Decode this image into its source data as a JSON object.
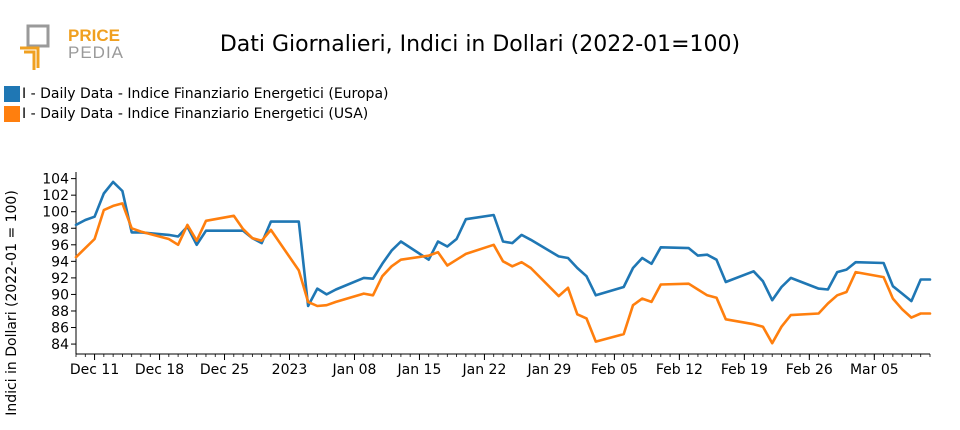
{
  "logo": {
    "line1": "PRICE",
    "line2": "PEDIA",
    "accent_color": "#f0a020",
    "gray_color": "#9a9a9a"
  },
  "title": "Dati Giornalieri, Indici in Dollari (2022-01=100)",
  "colors": {
    "europa": "#1f77b4",
    "usa": "#ff7f0e"
  },
  "chart_data": {
    "type": "line",
    "title": "Dati Giornalieri, Indici in Dollari (2022-01=100)",
    "xlabel": "",
    "ylabel": "Indici in Dollari (2022-01 = 100)",
    "ylim": [
      82.8,
      104.8
    ],
    "yticks": [
      84,
      86,
      88,
      90,
      92,
      94,
      96,
      98,
      100,
      102,
      104
    ],
    "xlim": [
      "2022-12-09",
      "2023-03-11"
    ],
    "xticks": [
      {
        "date": "2022-12-11",
        "label": "Dec 11"
      },
      {
        "date": "2022-12-18",
        "label": "Dec 18"
      },
      {
        "date": "2022-12-25",
        "label": "Dec 25"
      },
      {
        "date": "2023-01-01",
        "label": "2023"
      },
      {
        "date": "2023-01-08",
        "label": "Jan 08"
      },
      {
        "date": "2023-01-15",
        "label": "Jan 15"
      },
      {
        "date": "2023-01-22",
        "label": "Jan 22"
      },
      {
        "date": "2023-01-29",
        "label": "Jan 29"
      },
      {
        "date": "2023-02-05",
        "label": "Feb 05"
      },
      {
        "date": "2023-02-12",
        "label": "Feb 12"
      },
      {
        "date": "2023-02-19",
        "label": "Feb 19"
      },
      {
        "date": "2023-02-26",
        "label": "Feb 26"
      },
      {
        "date": "2023-03-05",
        "label": "Mar 05"
      }
    ],
    "series": [
      {
        "name": "I - Daily Data - Indice Finanziario Energetici (Europa)",
        "x": [
          "2022-12-09",
          "2022-12-10",
          "2022-12-11",
          "2022-12-12",
          "2022-12-13",
          "2022-12-14",
          "2022-12-15",
          "2022-12-16",
          "2022-12-19",
          "2022-12-20",
          "2022-12-21",
          "2022-12-22",
          "2022-12-23",
          "2022-12-26",
          "2022-12-27",
          "2022-12-28",
          "2022-12-29",
          "2022-12-30",
          "2023-01-02",
          "2023-01-03",
          "2023-01-04",
          "2023-01-05",
          "2023-01-06",
          "2023-01-09",
          "2023-01-10",
          "2023-01-11",
          "2023-01-12",
          "2023-01-13",
          "2023-01-16",
          "2023-01-17",
          "2023-01-18",
          "2023-01-19",
          "2023-01-20",
          "2023-01-23",
          "2023-01-24",
          "2023-01-25",
          "2023-01-26",
          "2023-01-27",
          "2023-01-30",
          "2023-01-31",
          "2023-02-01",
          "2023-02-02",
          "2023-02-03",
          "2023-02-06",
          "2023-02-07",
          "2023-02-08",
          "2023-02-09",
          "2023-02-10",
          "2023-02-13",
          "2023-02-14",
          "2023-02-15",
          "2023-02-16",
          "2023-02-17",
          "2023-02-20",
          "2023-02-21",
          "2023-02-22",
          "2023-02-23",
          "2023-02-24",
          "2023-02-27",
          "2023-02-28",
          "2023-03-01",
          "2023-03-02",
          "2023-03-03",
          "2023-03-06",
          "2023-03-07",
          "2023-03-08",
          "2023-03-09",
          "2023-03-10",
          "2023-03-11"
        ],
        "values": [
          98.4,
          99.0,
          99.4,
          102.2,
          103.6,
          102.5,
          97.5,
          97.5,
          97.2,
          97.0,
          98.2,
          96.0,
          97.7,
          97.7,
          97.7,
          96.8,
          96.2,
          98.8,
          98.8,
          88.6,
          90.7,
          90.0,
          90.6,
          92.0,
          91.9,
          93.7,
          95.3,
          96.4,
          94.2,
          96.4,
          95.8,
          96.7,
          99.1,
          99.6,
          96.4,
          96.2,
          97.2,
          96.6,
          94.6,
          94.4,
          93.2,
          92.2,
          89.9,
          90.9,
          93.2,
          94.4,
          93.7,
          95.7,
          95.6,
          94.7,
          94.8,
          94.2,
          91.5,
          92.8,
          91.6,
          89.3,
          90.9,
          92.0,
          90.7,
          90.6,
          92.7,
          93.0,
          93.9,
          93.8,
          91.0,
          90.1,
          89.2,
          91.8,
          91.8
        ]
      },
      {
        "name": "I - Daily Data - Indice Finanziario Energetici (USA)",
        "x": [
          "2022-12-09",
          "2022-12-10",
          "2022-12-11",
          "2022-12-12",
          "2022-12-13",
          "2022-12-14",
          "2022-12-15",
          "2022-12-16",
          "2022-12-19",
          "2022-12-20",
          "2022-12-21",
          "2022-12-22",
          "2022-12-23",
          "2022-12-26",
          "2022-12-27",
          "2022-12-28",
          "2022-12-29",
          "2022-12-30",
          "2023-01-02",
          "2023-01-03",
          "2023-01-04",
          "2023-01-05",
          "2023-01-06",
          "2023-01-09",
          "2023-01-10",
          "2023-01-11",
          "2023-01-12",
          "2023-01-13",
          "2023-01-16",
          "2023-01-17",
          "2023-01-18",
          "2023-01-19",
          "2023-01-20",
          "2023-01-23",
          "2023-01-24",
          "2023-01-25",
          "2023-01-26",
          "2023-01-27",
          "2023-01-30",
          "2023-01-31",
          "2023-02-01",
          "2023-02-02",
          "2023-02-03",
          "2023-02-06",
          "2023-02-07",
          "2023-02-08",
          "2023-02-09",
          "2023-02-10",
          "2023-02-13",
          "2023-02-14",
          "2023-02-15",
          "2023-02-16",
          "2023-02-17",
          "2023-02-20",
          "2023-02-21",
          "2023-02-22",
          "2023-02-23",
          "2023-02-24",
          "2023-02-27",
          "2023-02-28",
          "2023-03-01",
          "2023-03-02",
          "2023-03-03",
          "2023-03-06",
          "2023-03-07",
          "2023-03-08",
          "2023-03-09",
          "2023-03-10",
          "2023-03-11"
        ],
        "values": [
          94.5,
          95.6,
          96.7,
          100.2,
          100.7,
          101.0,
          98.0,
          97.6,
          96.7,
          96.0,
          98.4,
          96.5,
          98.9,
          99.5,
          97.9,
          96.8,
          96.5,
          97.8,
          92.9,
          89.1,
          88.6,
          88.7,
          89.1,
          90.1,
          89.9,
          92.2,
          93.4,
          94.2,
          94.7,
          95.1,
          93.5,
          94.2,
          94.9,
          96.0,
          94.0,
          93.4,
          93.9,
          93.2,
          89.8,
          90.8,
          87.6,
          87.1,
          84.3,
          85.2,
          88.7,
          89.5,
          89.1,
          91.2,
          91.3,
          90.6,
          89.9,
          89.6,
          87.0,
          86.4,
          86.1,
          84.1,
          86.1,
          87.5,
          87.7,
          88.9,
          89.9,
          90.3,
          92.7,
          92.1,
          89.5,
          88.2,
          87.2,
          87.7,
          87.7
        ]
      }
    ]
  }
}
